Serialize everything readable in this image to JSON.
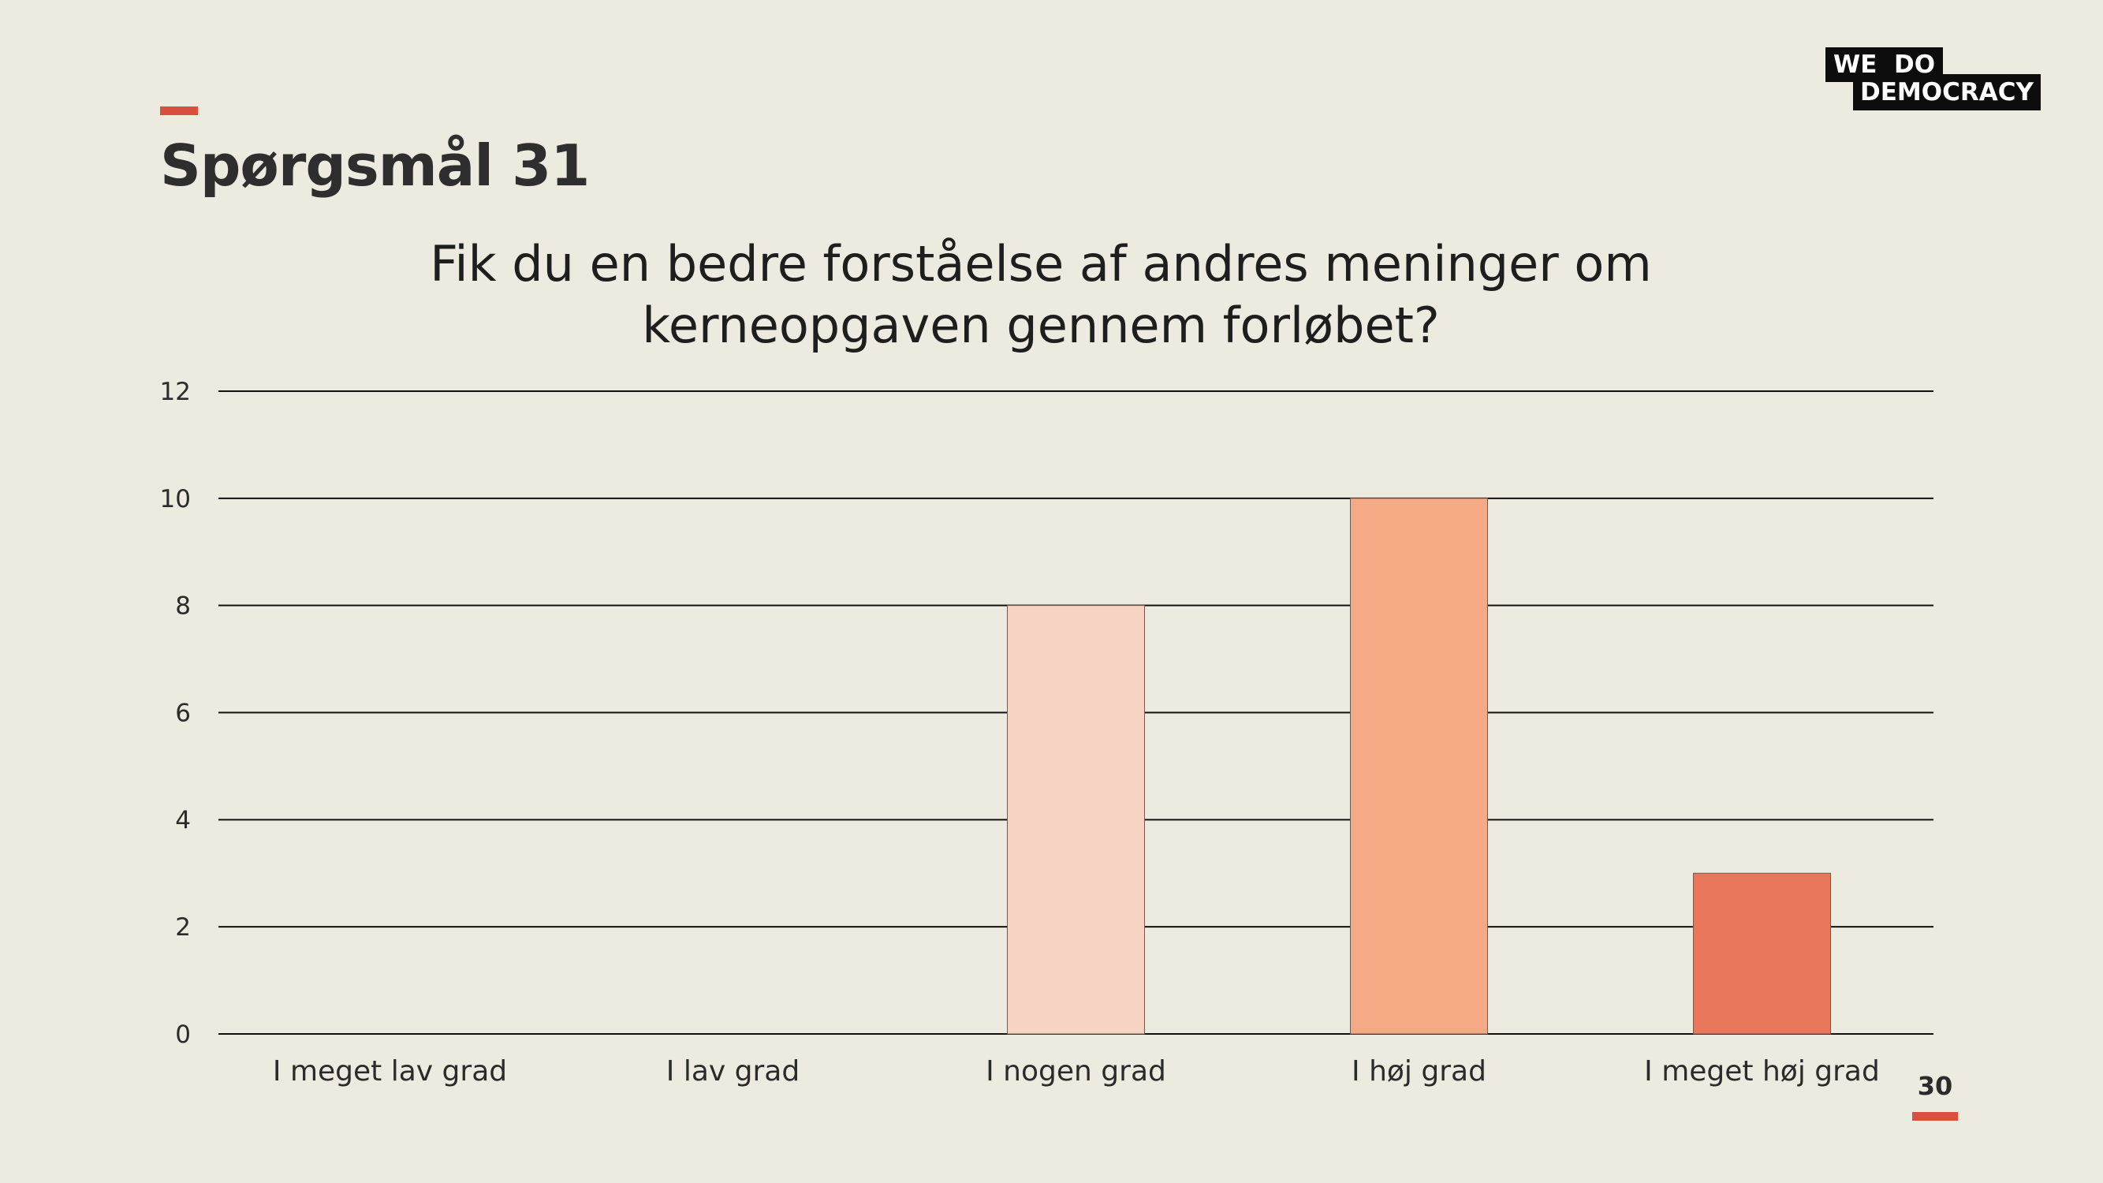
{
  "slide": {
    "title": "Spørgsmål 31",
    "page_number": "30",
    "logo_line1": "WE  DO",
    "logo_line2": "DEMOCRACY"
  },
  "colors": {
    "background": "#edeae0",
    "accent": "#d9503f",
    "logo": "#0d0d0d"
  },
  "chart_data": {
    "type": "bar",
    "title": "Fik du en bedre forståelse af andres meninger om kerneopgaven gennem forløbet?",
    "title_lines": [
      "Fik du en bedre forståelse af andres meninger om",
      "kerneopgaven gennem forløbet?"
    ],
    "categories": [
      "I meget lav grad",
      "I lav grad",
      "I nogen grad",
      "I høj grad",
      "I meget høj grad"
    ],
    "values": [
      0,
      0,
      8,
      10,
      3
    ],
    "bar_colors": [
      "#f7d3c3",
      "#f7d3c3",
      "#f7d3c3",
      "#f6a985",
      "#e8775c"
    ],
    "ylim": [
      0,
      12
    ],
    "yticks": [
      0,
      2,
      4,
      6,
      8,
      10,
      12
    ],
    "xlabel": "",
    "ylabel": "",
    "grid": true,
    "legend": "none"
  }
}
